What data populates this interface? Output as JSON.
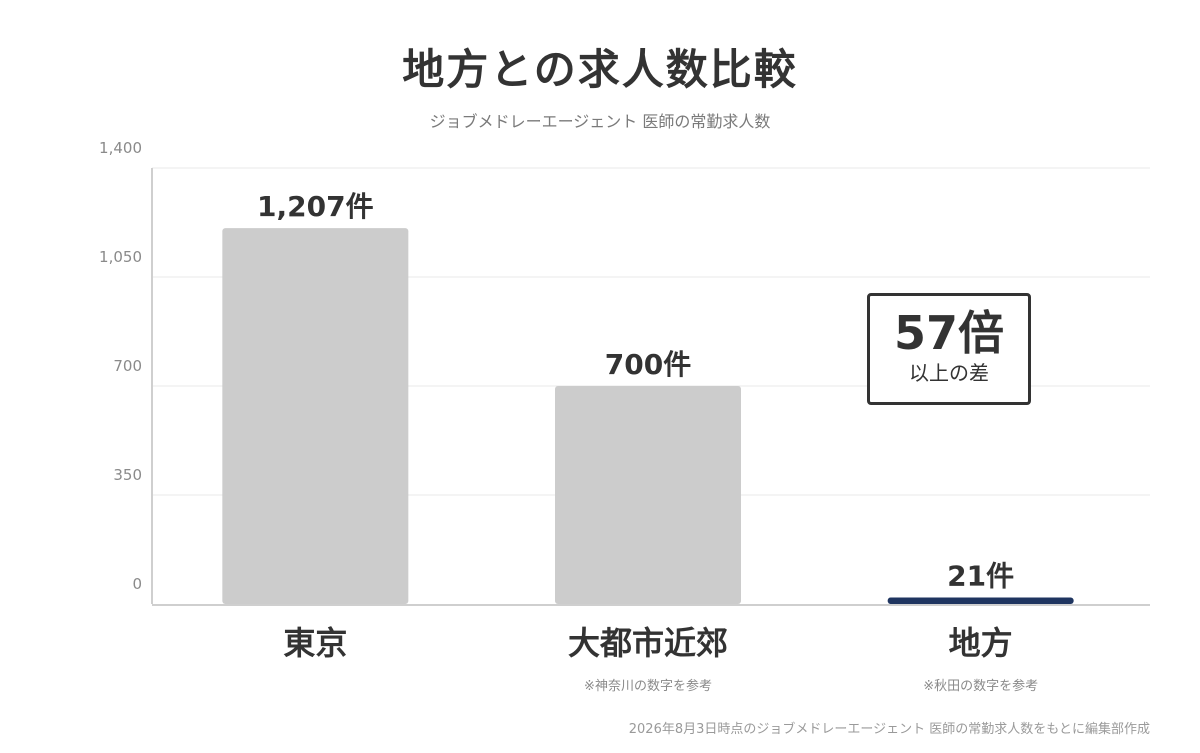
{
  "chart_data": {
    "type": "bar",
    "title": "地方との求人数比較",
    "subtitle": "ジョブメドレーエージェント 医師の常勤求人数",
    "categories": [
      "東京",
      "大都市近郊",
      "地方"
    ],
    "category_notes": [
      "",
      "※神奈川の数字を参考",
      "※秋田の数字を参考"
    ],
    "values": [
      1207,
      700,
      21
    ],
    "value_labels": [
      "1,207件",
      "700件",
      "21件"
    ],
    "ylim": [
      0,
      1400
    ],
    "yticks": [
      0,
      350,
      700,
      1050,
      1400
    ],
    "ytick_labels": [
      "0",
      "350",
      "700",
      "1,050",
      "1,400"
    ],
    "grid": true,
    "bar_colors": [
      "#cccccc",
      "#cccccc",
      "#1f3560"
    ],
    "callout": {
      "big": "57倍",
      "small": "以上の差"
    },
    "footnote": "2026年8月3日時点のジョブメドレーエージェント 医師の常勤求人数をもとに編集部作成"
  }
}
